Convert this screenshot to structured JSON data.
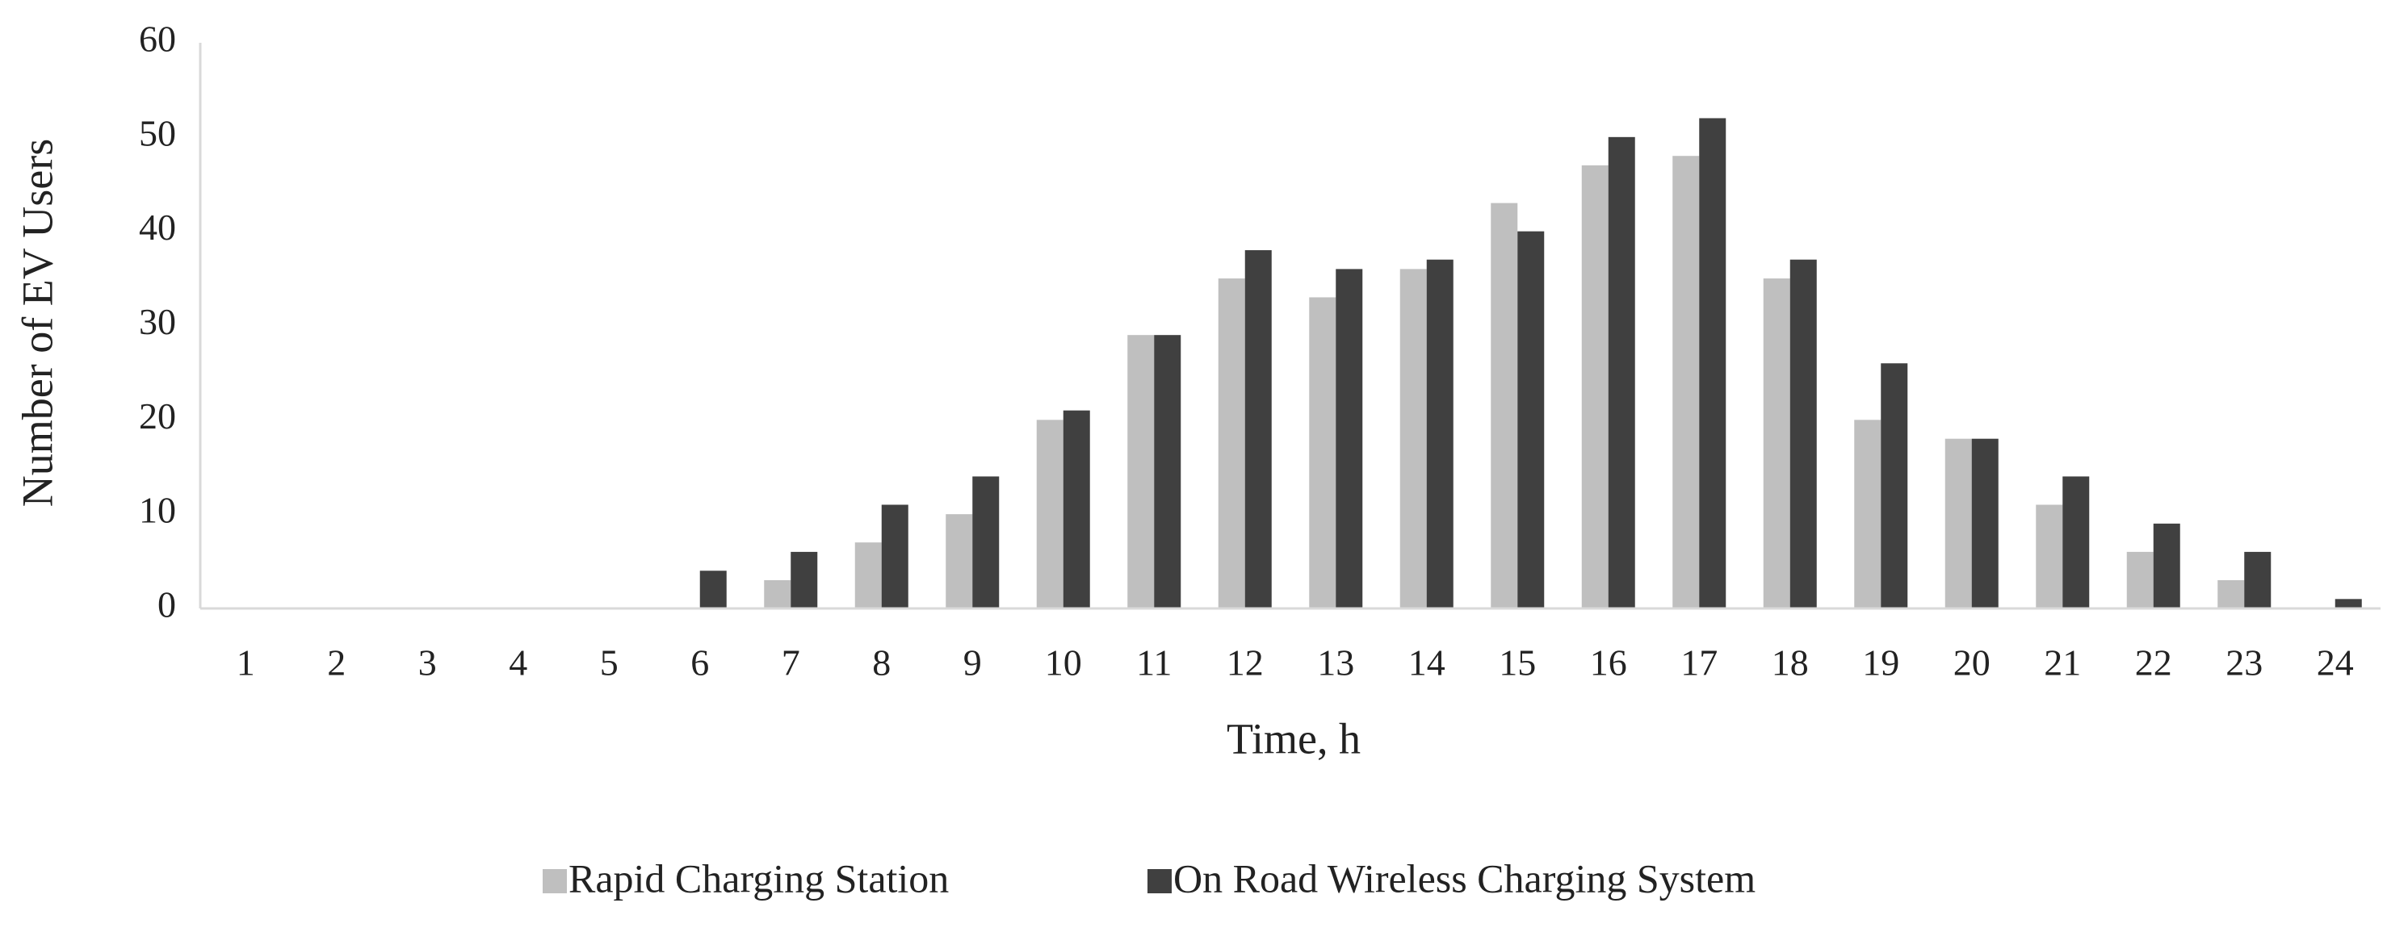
{
  "chart_data": {
    "type": "bar",
    "x_label": "Time, h",
    "y_label": "Number of EV Users",
    "categories": [
      "1",
      "2",
      "3",
      "4",
      "5",
      "6",
      "7",
      "8",
      "9",
      "10",
      "11",
      "12",
      "13",
      "14",
      "15",
      "16",
      "17",
      "18",
      "19",
      "20",
      "21",
      "22",
      "23",
      "24"
    ],
    "series": [
      {
        "name": "Rapid Charging Station",
        "color": "#bfbfbf",
        "values": [
          0,
          0,
          0,
          0,
          0,
          0,
          3,
          7,
          10,
          20,
          29,
          35,
          33,
          36,
          43,
          47,
          48,
          35,
          20,
          18,
          11,
          6,
          3,
          0
        ]
      },
      {
        "name": "On Road Wireless Charging System",
        "color": "#404040",
        "values": [
          0,
          0,
          0,
          0,
          0,
          4,
          6,
          11,
          14,
          21,
          29,
          38,
          36,
          37,
          40,
          50,
          52,
          37,
          26,
          18,
          14,
          9,
          6,
          1
        ]
      }
    ],
    "ylim": [
      0,
      60
    ],
    "yticks": [
      0,
      10,
      20,
      30,
      40,
      50,
      60
    ],
    "grid": false,
    "legend": "bottom"
  }
}
